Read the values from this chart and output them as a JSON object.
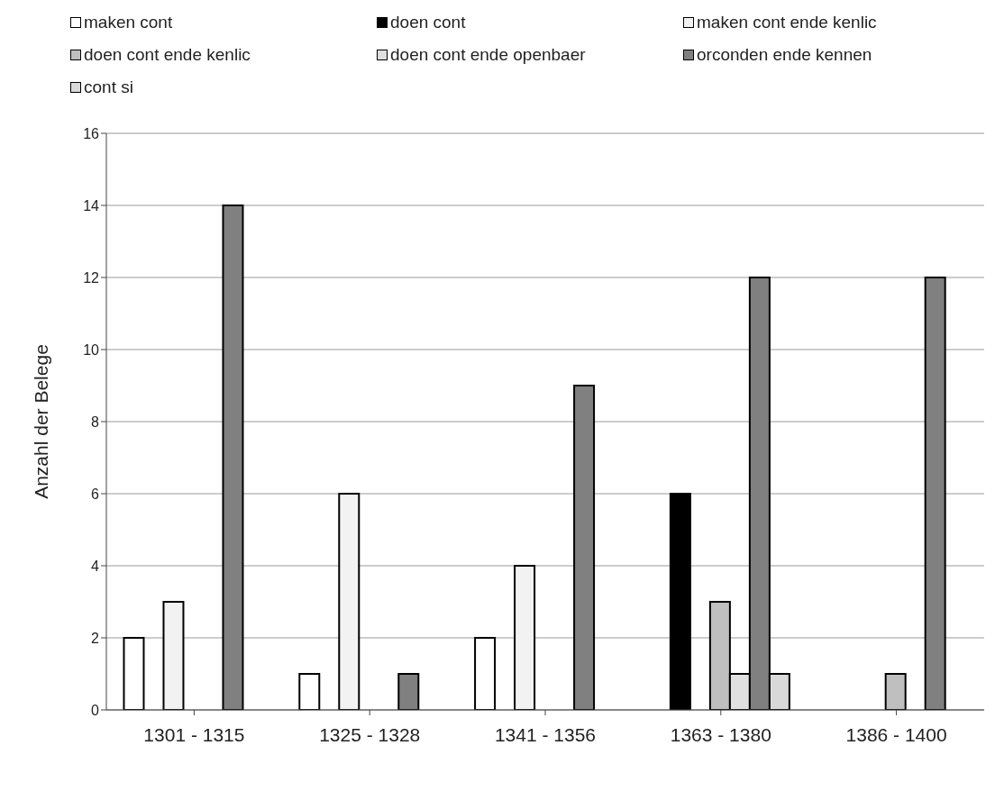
{
  "chart_data": {
    "type": "bar",
    "ylabel": "Anzahl der Belege",
    "categories": [
      "1301 - 1315",
      "1325 - 1328",
      "1341 - 1356",
      "1363 - 1380",
      "1386 - 1400"
    ],
    "series": [
      {
        "name": "maken cont",
        "color": "#ffffff",
        "values": [
          2,
          1,
          2,
          null,
          null
        ]
      },
      {
        "name": "doen cont",
        "color": "#000000",
        "values": [
          null,
          null,
          null,
          6,
          null
        ]
      },
      {
        "name": "maken cont ende kenlic",
        "color": "#f2f2f2",
        "values": [
          3,
          6,
          4,
          null,
          null
        ]
      },
      {
        "name": "doen cont ende kenlic",
        "color": "#bfbfbf",
        "values": [
          null,
          null,
          null,
          3,
          1
        ]
      },
      {
        "name": "doen cont ende openbaer",
        "color": "#e0e0e0",
        "values": [
          null,
          null,
          null,
          1,
          null
        ]
      },
      {
        "name": "orconden ende kennen",
        "color": "#808080",
        "values": [
          14,
          1,
          9,
          12,
          12
        ]
      },
      {
        "name": "cont si",
        "color": "#d9d9d9",
        "values": [
          null,
          null,
          null,
          1,
          null
        ]
      }
    ],
    "ylim": [
      0,
      16
    ],
    "yticks": [
      0,
      2,
      4,
      6,
      8,
      10,
      12,
      14,
      16
    ],
    "grid": "y",
    "legend": "top"
  }
}
